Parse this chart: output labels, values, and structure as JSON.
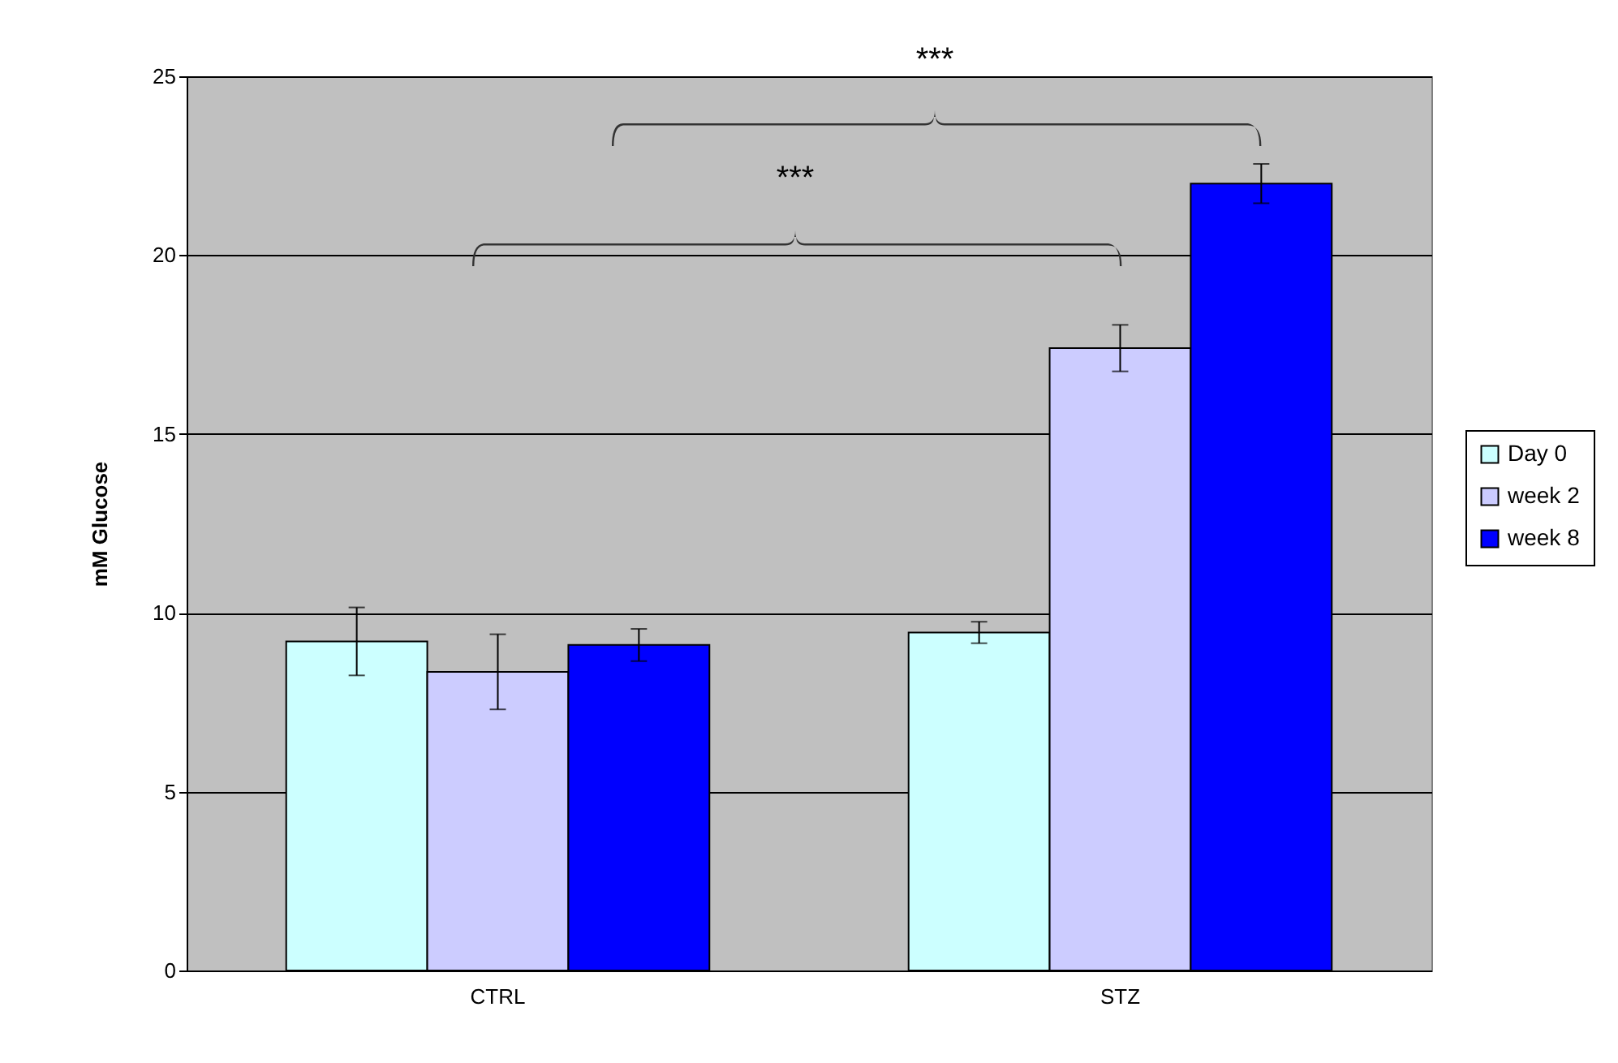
{
  "chart_data": {
    "type": "bar",
    "ylabel": "mM Glucose",
    "categories": [
      "CTRL",
      "STZ"
    ],
    "series": [
      {
        "name": "Day 0",
        "color": "#ccffff",
        "values": [
          9.2,
          9.45
        ],
        "errors": [
          0.95,
          0.3
        ]
      },
      {
        "name": "week 2",
        "color": "#ccccff",
        "values": [
          8.35,
          17.4
        ],
        "errors": [
          1.05,
          0.65
        ]
      },
      {
        "name": "week 8",
        "color": "#0000ff",
        "values": [
          9.1,
          22.0
        ],
        "errors": [
          0.45,
          0.55
        ]
      }
    ],
    "ylim": [
      0,
      25
    ],
    "yticks": [
      0,
      5,
      10,
      15,
      20,
      25
    ],
    "grid": "y",
    "legend": "right",
    "annotations": [
      "***",
      "***"
    ]
  }
}
